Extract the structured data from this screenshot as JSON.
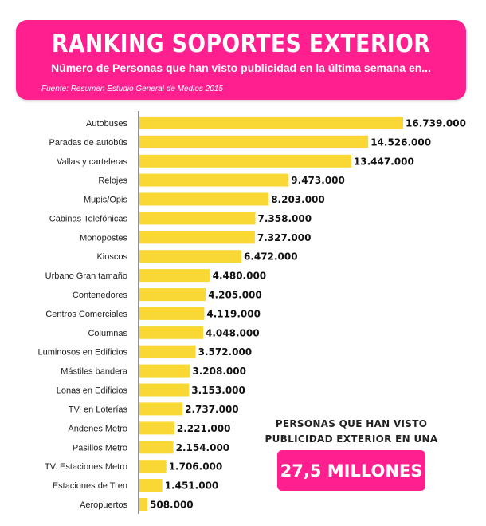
{
  "header": {
    "title": "RANKING SOPORTES EXTERIOR",
    "subtitle": "Número de Personas que han visto publicidad en la última semana en...",
    "source": "Fuente: Resumen Estudio General de Medios 2015"
  },
  "callout": {
    "text": "PERSONAS QUE HAN VISTO PUBLICIDAD EXTERIOR EN UNA SEMANA",
    "value": "27,5 MILLONES"
  },
  "colors": {
    "accent": "#ff1f8e",
    "bar": "#f9d835",
    "axis": "#222222"
  },
  "chart_data": {
    "type": "bar",
    "orientation": "horizontal",
    "categories": [
      "Autobuses",
      "Paradas de autobús",
      "Vallas y carteleras",
      "Relojes",
      "Mupis/Opis",
      "Cabinas Telefónicas",
      "Monopostes",
      "Kioscos",
      "Urbano Gran tamaño",
      "Contenedores",
      "Centros Comerciales",
      "Columnas",
      "Luminosos en Edificios",
      "Mástiles bandera",
      "Lonas en Edificios",
      "TV. en Loterías",
      "Andenes Metro",
      "Pasillos Metro",
      "TV. Estaciones Metro",
      "Estaciones de Tren",
      "Aeropuertos"
    ],
    "values": [
      16739000,
      14526000,
      13447000,
      9473000,
      8203000,
      7358000,
      7327000,
      6472000,
      4480000,
      4205000,
      4119000,
      4048000,
      3572000,
      3208000,
      3153000,
      2737000,
      2221000,
      2154000,
      1706000,
      1451000,
      508000
    ],
    "value_labels": [
      "16.739.000",
      "14.526.000",
      "13.447.000",
      "9.473.000",
      "8.203.000",
      "7.358.000",
      "7.327.000",
      "6.472.000",
      "4.480.000",
      "4.205.000",
      "4.119.000",
      "4.048.000",
      "3.572.000",
      "3.208.000",
      "3.153.000",
      "2.737.000",
      "2.221.000",
      "2.154.000",
      "1.706.000",
      "1.451.000",
      "508.000"
    ],
    "xlim": [
      0,
      16739000
    ],
    "grid": false,
    "legend": "none"
  }
}
